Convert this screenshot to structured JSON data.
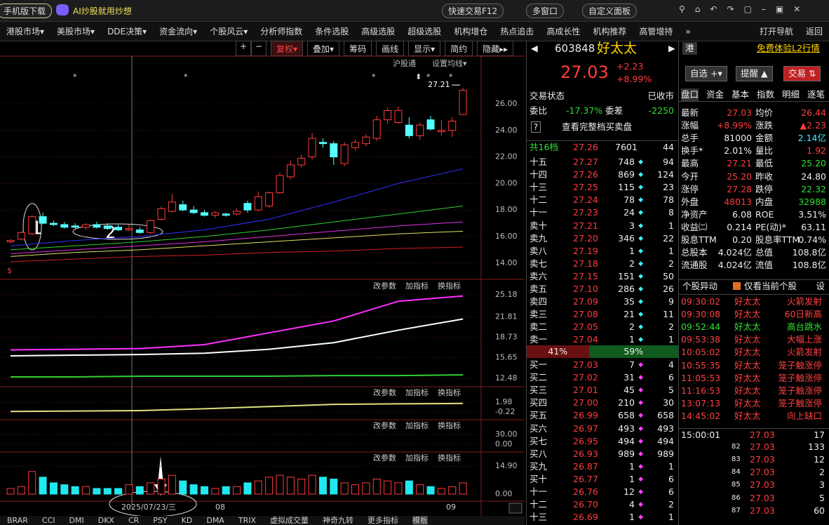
{
  "title_bar": {
    "download": "手机版下载",
    "ai": "AI炒股就用炒想",
    "buttons": [
      "快速交易F12",
      "多窗口",
      "自定义面板"
    ]
  },
  "menu": [
    "港股市场▾",
    "美股市场▾",
    "DDE决策▾",
    "资金流向▾",
    "个股风云▾",
    "分析师指数",
    "条件选股",
    "高级选股",
    "超级选股",
    "机构增仓",
    "热点追击",
    "高成长性",
    "机构推荐",
    "高管增持",
    "»"
  ],
  "menu_right": [
    "打开导航",
    "返回"
  ],
  "toolbar": [
    "复权▾",
    "叠加▾",
    "筹码",
    "画线",
    "显示▾",
    "简约",
    "隐藏▸▸"
  ],
  "chart": {
    "type": "candlestick",
    "links": [
      "沪股通",
      "设置均线▾"
    ],
    "high_label": "27.21",
    "ylim": [
      12.93,
      28.54
    ],
    "yticks": [
      {
        "value": 26,
        "label": "26.00"
      },
      {
        "value": 24,
        "label": "24.00"
      },
      {
        "value": 22,
        "label": "22.00"
      },
      {
        "value": 20,
        "label": "20.00"
      },
      {
        "value": 18,
        "label": "18.00"
      },
      {
        "value": 16,
        "label": "16.00"
      },
      {
        "value": 14,
        "label": "14.00"
      }
    ],
    "candles": [
      [
        15.6,
        15.8,
        15.5,
        15.7
      ],
      [
        15.8,
        16.4,
        15.7,
        16.3
      ],
      [
        16.2,
        17.6,
        16.1,
        17.5
      ],
      [
        17.5,
        17.8,
        16.9,
        17.0
      ],
      [
        17.0,
        17.2,
        16.8,
        16.9
      ],
      [
        16.9,
        17.1,
        16.6,
        16.7
      ],
      [
        16.8,
        17.0,
        16.6,
        16.7
      ],
      [
        16.7,
        17.0,
        16.5,
        16.9
      ],
      [
        16.9,
        17.1,
        16.6,
        16.7
      ],
      [
        16.8,
        17.0,
        16.5,
        16.6
      ],
      [
        16.7,
        16.9,
        16.4,
        16.5
      ],
      [
        16.5,
        16.9,
        16.4,
        16.6
      ],
      [
        16.5,
        16.7,
        16.2,
        16.3
      ],
      [
        16.3,
        17.3,
        16.2,
        17.2
      ],
      [
        17.3,
        18.3,
        17.2,
        18.1
      ],
      [
        17.9,
        19.2,
        17.8,
        18.6
      ],
      [
        18.4,
        18.7,
        17.9,
        18.0
      ],
      [
        18.0,
        18.3,
        17.7,
        17.8
      ],
      [
        17.8,
        18.0,
        17.5,
        17.6
      ],
      [
        17.6,
        17.9,
        17.4,
        17.8
      ],
      [
        17.7,
        17.8,
        17.5,
        17.6
      ],
      [
        17.7,
        18.1,
        17.6,
        17.9
      ],
      [
        18.5,
        18.7,
        17.8,
        18.0
      ],
      [
        18.0,
        19.4,
        17.9,
        19.0
      ],
      [
        18.3,
        19.4,
        18.2,
        19.3
      ],
      [
        19.3,
        20.8,
        19.2,
        20.6
      ],
      [
        20.5,
        21.7,
        20.3,
        21.4
      ],
      [
        21.4,
        22.2,
        21.2,
        21.9
      ],
      [
        22.0,
        23.8,
        21.8,
        23.4
      ],
      [
        23.1,
        23.4,
        22.7,
        23.0
      ],
      [
        23.0,
        23.2,
        21.4,
        22.0
      ],
      [
        21.5,
        23.1,
        21.3,
        22.9
      ],
      [
        22.7,
        23.3,
        22.5,
        23.1
      ],
      [
        23.0,
        23.7,
        22.8,
        23.5
      ],
      [
        23.4,
        25.1,
        23.2,
        24.8
      ],
      [
        24.8,
        25.7,
        24.5,
        25.5
      ],
      [
        24.6,
        25.8,
        24.5,
        25.5
      ],
      [
        24.4,
        25.0,
        23.4,
        23.6
      ],
      [
        23.6,
        24.6,
        23.3,
        24.4
      ],
      [
        24.8,
        25.1,
        24.0,
        24.1
      ],
      [
        23.9,
        24.8,
        23.6,
        24.0
      ],
      [
        24.0,
        25.0,
        23.5,
        24.7
      ],
      [
        25.2,
        27.21,
        25.2,
        27.03
      ]
    ],
    "ma_x": [
      0,
      6,
      12,
      18,
      24,
      30,
      36,
      42
    ],
    "ma": [
      {
        "color": "#3030ff",
        "values": [
          15.3,
          15.7,
          16.0,
          16.5,
          17.3,
          18.6,
          20.0,
          21.1
        ]
      },
      {
        "color": "#30d030",
        "values": [
          15.0,
          15.3,
          15.6,
          16.0,
          16.5,
          17.1,
          17.7,
          18.3
        ]
      },
      {
        "color": "#e030e0",
        "values": [
          14.7,
          15.0,
          15.3,
          15.6,
          16.0,
          16.4,
          16.8,
          17.1
        ]
      },
      {
        "color": "#e0e060",
        "values": [
          14.5,
          14.8,
          15.0,
          15.3,
          15.6,
          15.9,
          16.2,
          16.4
        ]
      },
      {
        "color": "#d02020",
        "values": [
          14.1,
          14.3,
          14.5,
          14.6,
          14.8,
          14.9,
          15.1,
          15.2
        ]
      }
    ],
    "volume": [
      3,
      4,
      12,
      9,
      6,
      5,
      4,
      4,
      3,
      3,
      3,
      5,
      4,
      6,
      8,
      10,
      7,
      5,
      4,
      3,
      4,
      4,
      6,
      7,
      9,
      10,
      9,
      8,
      10,
      9,
      8,
      6,
      5,
      6,
      8,
      7,
      6,
      7,
      5,
      4,
      3,
      4,
      6
    ],
    "volume_ylim": [
      -3.35,
      17.88
    ],
    "volume_yticks": [
      {
        "value": 14.9,
        "label": "14.90"
      },
      {
        "value": 0,
        "label": "0.00"
      }
    ],
    "panes": [
      {
        "ylim": [
          11.52,
          26.25
        ],
        "yticks": [
          25.18,
          21.81,
          18.73,
          15.65,
          12.48
        ],
        "series": [
          {
            "color": "#ff30ff",
            "values": [
              16.8,
              16.9,
              17.0,
              17.6,
              19.4,
              21.2,
              24.2,
              25.0
            ]
          },
          {
            "color": "#ffffff",
            "values": [
              15.9,
              16.0,
              16.1,
              16.3,
              16.9,
              17.9,
              19.8,
              21.5
            ]
          },
          {
            "color": "#30d030",
            "values": [
              12.7,
              12.7,
              12.8,
              12.8,
              12.8,
              12.9,
              12.9,
              13.0
            ]
          }
        ]
      },
      {
        "ylim": [
          -0.85,
          3.4
        ],
        "yticks": [
          1.98,
          -0.22
        ],
        "series": [
          {
            "color": "#e0e080",
            "values": [
              -0.1,
              0.0,
              0.1,
              0.5,
              1.0,
              1.5,
              1.6,
              1.7
            ]
          }
        ]
      },
      {
        "ylim": [
          -15,
          49.3
        ],
        "yticks": [
          {
            "value": 30,
            "label": "30.00"
          },
          {
            "value": 0,
            "label": "0.00"
          }
        ],
        "series": []
      }
    ],
    "pane_buttons": [
      "改参数",
      "加指标",
      "换指标"
    ],
    "dates": [
      "2025/07/23/三",
      "08",
      "09"
    ]
  },
  "tabs": [
    "BRAR",
    "CCI",
    "DMI",
    "DKX",
    "CR",
    "PSY",
    "KD",
    "DMA",
    "TRIX",
    "虚拟成交量",
    "神奇九转",
    "更多指标",
    "模板"
  ],
  "quote": {
    "code": "603848",
    "name": "好太太",
    "market": "港",
    "price": "27.03",
    "change": "+2.23",
    "pct": "+8.99%",
    "l2": "免费体验L2行情",
    "buttons": [
      "自选 +▾",
      "提醒 ▲",
      "交易 ⇅"
    ]
  },
  "book": {
    "status": [
      "交易状态",
      "已收市"
    ],
    "ratio": [
      "委比",
      "-17.37%",
      "委差",
      "-2250"
    ],
    "full": "查看完整档买卖盘",
    "total": [
      "共16档",
      "27.26",
      "7601",
      "44"
    ],
    "sell": [
      [
        "十五",
        "27.27",
        "748",
        "94"
      ],
      [
        "十四",
        "27.26",
        "869",
        "124"
      ],
      [
        "十三",
        "27.25",
        "115",
        "23"
      ],
      [
        "十二",
        "27.24",
        "78",
        "78"
      ],
      [
        "十一",
        "27.23",
        "24",
        "8"
      ],
      [
        "卖十",
        "27.21",
        "3",
        "1"
      ],
      [
        "卖九",
        "27.20",
        "346",
        "22"
      ],
      [
        "卖八",
        "27.19",
        "1",
        "1"
      ],
      [
        "卖七",
        "27.18",
        "2",
        "2"
      ],
      [
        "卖六",
        "27.15",
        "151",
        "50"
      ],
      [
        "卖五",
        "27.10",
        "286",
        "26"
      ],
      [
        "卖四",
        "27.09",
        "35",
        "9"
      ],
      [
        "卖三",
        "27.08",
        "21",
        "11"
      ],
      [
        "卖二",
        "27.05",
        "2",
        "2"
      ],
      [
        "卖一",
        "27.04",
        "1",
        "1"
      ]
    ],
    "split": [
      "41%",
      "59%"
    ],
    "buy": [
      [
        "买一",
        "27.03",
        "7",
        "4"
      ],
      [
        "买二",
        "27.02",
        "31",
        "6"
      ],
      [
        "买三",
        "27.01",
        "45",
        "5"
      ],
      [
        "买四",
        "27.00",
        "210",
        "30"
      ],
      [
        "买五",
        "26.99",
        "658",
        "658"
      ],
      [
        "买六",
        "26.97",
        "493",
        "493"
      ],
      [
        "买七",
        "26.95",
        "494",
        "494"
      ],
      [
        "买八",
        "26.93",
        "989",
        "989"
      ],
      [
        "买九",
        "26.87",
        "1",
        "1"
      ],
      [
        "买十",
        "26.77",
        "1",
        "6"
      ],
      [
        "十一",
        "26.76",
        "12",
        "6"
      ],
      [
        "十二",
        "26.70",
        "4",
        "2"
      ],
      [
        "十三",
        "26.69",
        "1",
        "1"
      ]
    ]
  },
  "stats": {
    "tabs": [
      "盘口",
      "资金",
      "基本",
      "指数",
      "明细",
      "逐笔"
    ],
    "rows": [
      [
        "最新",
        "27.03",
        "均价",
        "26.44"
      ],
      [
        "涨幅",
        "+8.99%",
        "涨跌",
        "▲2.23"
      ],
      [
        "总手",
        "81000",
        "金额",
        "2.14亿"
      ],
      [
        "换手*",
        "2.01%",
        "量比",
        "1.92"
      ],
      [
        "最高",
        "27.21",
        "最低",
        "25.20"
      ],
      [
        "今开",
        "25.20",
        "昨收",
        "24.80"
      ],
      [
        "涨停",
        "27.28",
        "跌停",
        "22.32"
      ],
      [
        "外盘",
        "48013",
        "内盘",
        "32988"
      ],
      [
        "净资产",
        "6.08",
        "ROE",
        "3.51%"
      ],
      [
        "收益㈡",
        "0.214",
        "PE(动)*",
        "63.11"
      ],
      [
        "股息TTM",
        "0.20",
        "股息率TTM",
        "0.74%"
      ],
      [
        "总股本",
        "4.024亿",
        "总值",
        "108.8亿"
      ],
      [
        "流通股",
        "4.024亿",
        "流值",
        "108.8亿"
      ]
    ]
  },
  "events": {
    "title": "个股异动",
    "filter": "仅看当前个股",
    "set": "设",
    "rows": [
      {
        "time": "09:30:02",
        "name": "好太太",
        "event": "火箭发射",
        "color": "#ff4040"
      },
      {
        "time": "09:30:08",
        "name": "好太太",
        "event": "60日新高",
        "color": "#ff4040"
      },
      {
        "time": "09:52:44",
        "name": "好太太",
        "event": "高台跳水",
        "color": "#30e030"
      },
      {
        "time": "09:53:38",
        "name": "好太太",
        "event": "大幅上涨",
        "color": "#ff4040"
      },
      {
        "time": "10:05:02",
        "name": "好太太",
        "event": "火箭发射",
        "color": "#ff4040"
      },
      {
        "time": "10:55:35",
        "name": "好太太",
        "event": "笼子触涨停",
        "color": "#ff4040"
      },
      {
        "time": "11:05:53",
        "name": "好太太",
        "event": "笼子触涨停",
        "color": "#ff4040"
      },
      {
        "time": "11:16:53",
        "name": "好太太",
        "event": "笼子触涨停",
        "color": "#ff4040"
      },
      {
        "time": "13:07:13",
        "name": "好太太",
        "event": "笼子触涨停",
        "color": "#ff4040"
      },
      {
        "time": "14:45:02",
        "name": "好太太",
        "event": "向上缺口",
        "color": "#ff4040"
      }
    ]
  },
  "trades": [
    [
      "15:00:01",
      "27.03",
      "17"
    ],
    [
      "82",
      "27.03",
      "133"
    ],
    [
      "83",
      "27.03",
      "12"
    ],
    [
      "84",
      "27.03",
      "2"
    ],
    [
      "85",
      "27.03",
      "3"
    ],
    [
      "86",
      "27.03",
      "5"
    ],
    [
      "87",
      "27.03",
      "60"
    ]
  ]
}
